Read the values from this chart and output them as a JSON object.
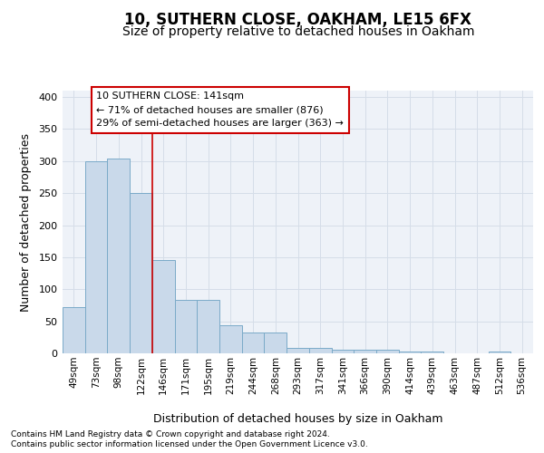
{
  "title": "10, SUTHERN CLOSE, OAKHAM, LE15 6FX",
  "subtitle": "Size of property relative to detached houses in Oakham",
  "xlabel": "Distribution of detached houses by size in Oakham",
  "ylabel": "Number of detached properties",
  "bar_labels": [
    "49sqm",
    "73sqm",
    "98sqm",
    "122sqm",
    "146sqm",
    "171sqm",
    "195sqm",
    "219sqm",
    "244sqm",
    "268sqm",
    "293sqm",
    "317sqm",
    "341sqm",
    "366sqm",
    "390sqm",
    "414sqm",
    "439sqm",
    "463sqm",
    "487sqm",
    "512sqm",
    "536sqm"
  ],
  "bar_values": [
    72,
    300,
    304,
    250,
    145,
    83,
    83,
    44,
    32,
    32,
    9,
    9,
    6,
    6,
    6,
    3,
    3,
    0,
    0,
    3,
    0
  ],
  "bar_color": "#c9d9ea",
  "bar_edge_color": "#7aaac8",
  "grid_color": "#d5dde8",
  "background_color": "#eef2f8",
  "red_line_x": 3.5,
  "annotation_line1": "10 SUTHERN CLOSE: 141sqm",
  "annotation_line2": "← 71% of detached houses are smaller (876)",
  "annotation_line3": "29% of semi-detached houses are larger (363) →",
  "annotation_box_facecolor": "#ffffff",
  "annotation_box_edgecolor": "#cc0000",
  "footnote1": "Contains HM Land Registry data © Crown copyright and database right 2024.",
  "footnote2": "Contains public sector information licensed under the Open Government Licence v3.0.",
  "ylim_max": 410,
  "yticks": [
    0,
    50,
    100,
    150,
    200,
    250,
    300,
    350,
    400
  ],
  "title_fontsize": 12,
  "subtitle_fontsize": 10,
  "xlabel_fontsize": 9,
  "ylabel_fontsize": 9,
  "tick_fontsize": 8,
  "footnote_fontsize": 6.5
}
